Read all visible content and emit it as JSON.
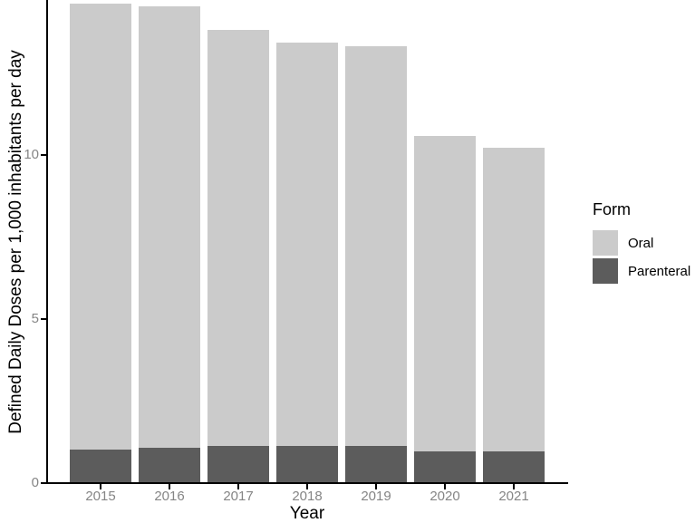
{
  "chart_data": {
    "type": "bar",
    "stacked": true,
    "title": "",
    "xlabel": "Year",
    "ylabel": "Defined Daily Doses per 1,000 inhabitants per day",
    "categories": [
      "2015",
      "2016",
      "2017",
      "2018",
      "2019",
      "2020",
      "2021"
    ],
    "series": [
      {
        "name": "Oral",
        "color": "#cbcbcb",
        "values": [
          13.6,
          13.45,
          12.7,
          12.3,
          12.2,
          9.6,
          9.25
        ]
      },
      {
        "name": "Parenteral",
        "color": "#5c5c5c",
        "values": [
          1.0,
          1.05,
          1.1,
          1.1,
          1.1,
          0.95,
          0.95
        ]
      }
    ],
    "stack_totals": [
      14.6,
      14.5,
      13.8,
      13.4,
      13.3,
      10.55,
      10.2
    ],
    "ylim": [
      0,
      14.7
    ],
    "yticks": [
      0,
      5,
      10
    ],
    "legend_title": "Form",
    "legend_position": "right",
    "grid": false,
    "axis_color": "#000000",
    "tick_label_color": "#858585"
  }
}
